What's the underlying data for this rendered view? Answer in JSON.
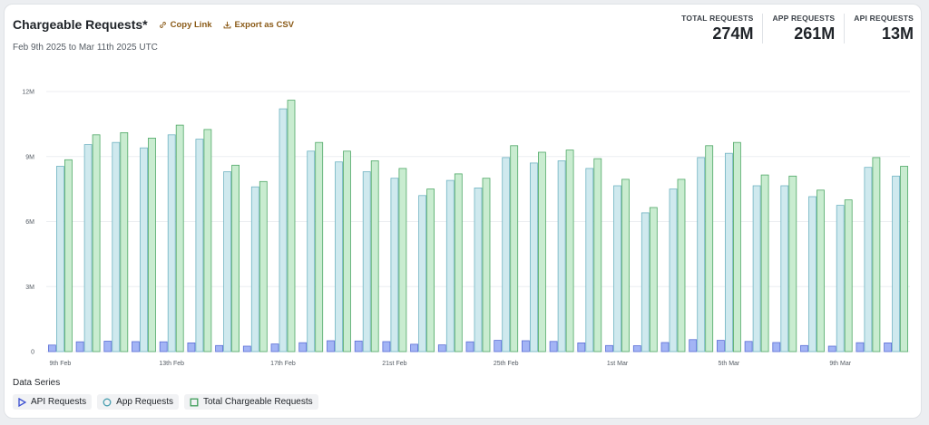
{
  "header": {
    "title": "Chargeable Requests*",
    "copy_link_label": "Copy Link",
    "export_label": "Export as CSV",
    "date_range": "Feb 9th 2025 to Mar 11th 2025 UTC"
  },
  "stats": [
    {
      "label": "TOTAL REQUESTS",
      "value": "274M"
    },
    {
      "label": "APP REQUESTS",
      "value": "261M"
    },
    {
      "label": "API REQUESTS",
      "value": "13M"
    }
  ],
  "legend": {
    "title": "Data Series",
    "items": [
      {
        "label": "API Requests",
        "icon": "triangle-icon",
        "color": "#3b4fd1"
      },
      {
        "label": "App Requests",
        "icon": "circle-icon",
        "color": "#4a9fb0"
      },
      {
        "label": "Total Chargeable Requests",
        "icon": "square-icon",
        "color": "#3f9d5a"
      }
    ]
  },
  "chart_data": {
    "type": "bar",
    "ylim": [
      0,
      12000000
    ],
    "y_ticks": [
      {
        "value": 0,
        "label": "0"
      },
      {
        "value": 3000000,
        "label": "3M"
      },
      {
        "value": 6000000,
        "label": "6M"
      },
      {
        "value": 9000000,
        "label": "9M"
      },
      {
        "value": 12000000,
        "label": "12M"
      }
    ],
    "x_tick_labels": [
      {
        "index": 0,
        "label": "9th Feb"
      },
      {
        "index": 4,
        "label": "13th Feb"
      },
      {
        "index": 8,
        "label": "17th Feb"
      },
      {
        "index": 12,
        "label": "21st Feb"
      },
      {
        "index": 16,
        "label": "25th Feb"
      },
      {
        "index": 20,
        "label": "1st Mar"
      },
      {
        "index": 24,
        "label": "5th Mar"
      },
      {
        "index": 28,
        "label": "9th Mar"
      }
    ],
    "categories": [
      "Feb 9",
      "Feb 10",
      "Feb 11",
      "Feb 12",
      "Feb 13",
      "Feb 14",
      "Feb 15",
      "Feb 16",
      "Feb 17",
      "Feb 18",
      "Feb 19",
      "Feb 20",
      "Feb 21",
      "Feb 22",
      "Feb 23",
      "Feb 24",
      "Feb 25",
      "Feb 26",
      "Feb 27",
      "Feb 28",
      "Mar 1",
      "Mar 2",
      "Mar 3",
      "Mar 4",
      "Mar 5",
      "Mar 6",
      "Mar 7",
      "Mar 8",
      "Mar 9",
      "Mar 10",
      "Mar 11"
    ],
    "series": [
      {
        "name": "API Requests",
        "fill": "#a3b4f5",
        "stroke": "#5b6fd6",
        "values": [
          0.3,
          0.45,
          0.48,
          0.46,
          0.45,
          0.4,
          0.28,
          0.25,
          0.35,
          0.41,
          0.5,
          0.49,
          0.46,
          0.34,
          0.31,
          0.45,
          0.52,
          0.5,
          0.47,
          0.4,
          0.28,
          0.27,
          0.42,
          0.55,
          0.52,
          0.47,
          0.42,
          0.28,
          0.25,
          0.41,
          0.4
        ]
      },
      {
        "name": "App Requests",
        "fill": "#cfe9ee",
        "stroke": "#6fb3c2",
        "values": [
          8.55,
          9.55,
          9.65,
          9.4,
          10.0,
          9.8,
          8.3,
          7.6,
          11.2,
          9.25,
          8.75,
          8.3,
          8.0,
          7.2,
          7.9,
          7.55,
          8.95,
          8.7,
          8.8,
          8.45,
          7.65,
          6.4,
          7.5,
          8.95,
          9.15,
          7.65,
          7.65,
          7.15,
          6.75,
          8.5,
          8.1
        ]
      },
      {
        "name": "Total Chargeable Requests",
        "fill": "#c9ecd0",
        "stroke": "#4fa866",
        "values": [
          8.85,
          10.0,
          10.1,
          9.85,
          10.45,
          10.25,
          8.6,
          7.85,
          11.6,
          9.65,
          9.25,
          8.8,
          8.45,
          7.5,
          8.2,
          8.0,
          9.5,
          9.2,
          9.3,
          8.9,
          7.95,
          6.65,
          7.95,
          9.5,
          9.65,
          8.15,
          8.1,
          7.45,
          7.0,
          8.95,
          8.55
        ]
      }
    ],
    "value_unit_multiplier": 1000000,
    "grid": true,
    "legend_position": "bottom-left"
  }
}
